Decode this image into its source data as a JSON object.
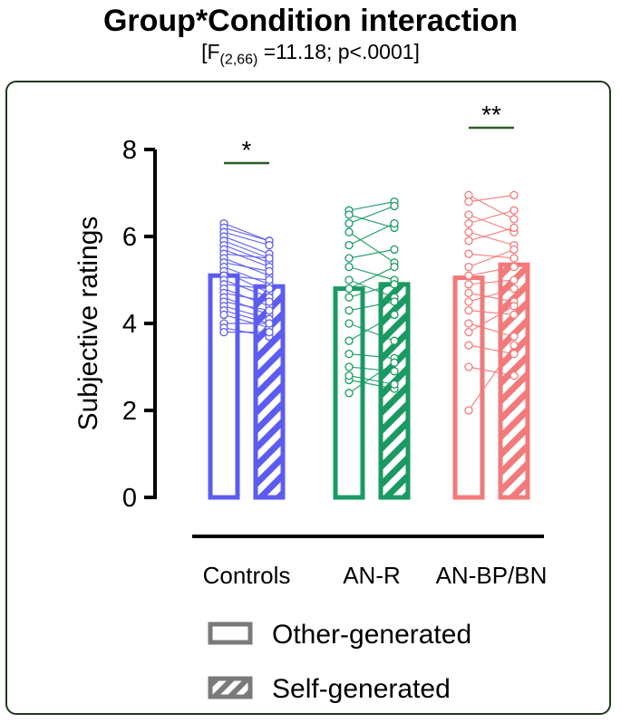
{
  "title": "Group*Condition interaction",
  "subtitle": {
    "prefix": "[F",
    "df": "(2,66)",
    "suffix": " =11.18; p<.0001]"
  },
  "chart_data": {
    "type": "bar",
    "ylabel": "Subjective ratings",
    "ylim": [
      0,
      8
    ],
    "yticks": [
      "0",
      "2",
      "4",
      "6",
      "8"
    ],
    "categories": [
      "Controls",
      "AN-R",
      "AN-BP/BN"
    ],
    "colors": [
      "#5c5cf0",
      "#1a9a62",
      "#f27a7a"
    ],
    "series": [
      {
        "name": "Other-generated",
        "values": [
          5.1,
          4.8,
          5.05
        ]
      },
      {
        "name": "Self-generated",
        "values": [
          4.85,
          4.9,
          5.35
        ]
      }
    ],
    "significance": [
      "*",
      "",
      "**"
    ],
    "paired_points": [
      [
        [
          6.3,
          5.9
        ],
        [
          6.2,
          5.9
        ],
        [
          6.1,
          5.8
        ],
        [
          6.0,
          5.6
        ],
        [
          5.9,
          5.5
        ],
        [
          5.8,
          5.4
        ],
        [
          5.7,
          5.3
        ],
        [
          5.6,
          5.5
        ],
        [
          5.5,
          5.1
        ],
        [
          5.4,
          5.2
        ],
        [
          5.3,
          4.9
        ],
        [
          5.2,
          4.7
        ],
        [
          5.1,
          5.0
        ],
        [
          5.0,
          4.6
        ],
        [
          4.9,
          4.8
        ],
        [
          4.8,
          4.4
        ],
        [
          4.7,
          4.5
        ],
        [
          4.6,
          4.2
        ],
        [
          4.5,
          4.3
        ],
        [
          4.4,
          4.1
        ],
        [
          4.3,
          4.0
        ],
        [
          4.2,
          3.9
        ],
        [
          4.0,
          4.0
        ],
        [
          3.9,
          3.7
        ],
        [
          3.8,
          3.8
        ]
      ],
      [
        [
          6.6,
          6.8
        ],
        [
          6.5,
          6.2
        ],
        [
          6.3,
          6.7
        ],
        [
          6.1,
          5.4
        ],
        [
          5.8,
          6.3
        ],
        [
          5.5,
          5.7
        ],
        [
          5.3,
          5.0
        ],
        [
          5.0,
          4.6
        ],
        [
          4.8,
          5.3
        ],
        [
          4.6,
          4.9
        ],
        [
          4.3,
          4.5
        ],
        [
          4.0,
          3.6
        ],
        [
          3.6,
          4.2
        ],
        [
          3.3,
          3.2
        ],
        [
          3.0,
          2.9
        ],
        [
          2.7,
          2.5
        ],
        [
          2.4,
          3.1
        ],
        [
          2.8,
          2.6
        ]
      ],
      [
        [
          6.95,
          6.4
        ],
        [
          6.8,
          6.95
        ],
        [
          6.5,
          6.1
        ],
        [
          6.3,
          6.6
        ],
        [
          6.1,
          5.8
        ],
        [
          5.9,
          6.2
        ],
        [
          5.6,
          5.5
        ],
        [
          5.3,
          5.7
        ],
        [
          5.1,
          5.3
        ],
        [
          4.9,
          5.0
        ],
        [
          4.7,
          4.5
        ],
        [
          4.5,
          4.8
        ],
        [
          4.3,
          4.2
        ],
        [
          4.0,
          3.7
        ],
        [
          3.8,
          4.4
        ],
        [
          3.5,
          3.3
        ],
        [
          3.0,
          2.8
        ],
        [
          2.0,
          3.5
        ]
      ]
    ]
  }
}
